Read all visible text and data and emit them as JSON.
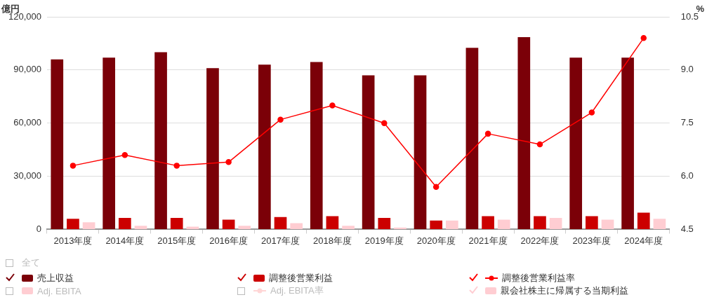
{
  "chart_data": {
    "type": "bar",
    "ylabel": "億円",
    "y2label": "%",
    "categories": [
      "2013年度",
      "2014年度",
      "2015年度",
      "2016年度",
      "2017年度",
      "2018年度",
      "2019年度",
      "2020年度",
      "2021年度",
      "2022年度",
      "2023年度",
      "2024年度"
    ],
    "series": [
      {
        "name": "売上収益",
        "color": "#7b0008",
        "values": [
          96000,
          97000,
          100000,
          91000,
          93000,
          94500,
          87000,
          87000,
          102500,
          108500,
          97000,
          97000
        ]
      },
      {
        "name": "調整後営業利益",
        "color": "#cc0000",
        "values": [
          6000,
          6500,
          6500,
          5500,
          7000,
          7500,
          6500,
          5000,
          7500,
          7500,
          7500,
          9500
        ]
      },
      {
        "name": "調整後営業利益率",
        "type": "line",
        "axis": "y2",
        "color": "#ff0000",
        "values": [
          6.3,
          6.6,
          6.3,
          6.4,
          7.6,
          8.0,
          7.5,
          5.7,
          7.2,
          6.9,
          7.8,
          9.9
        ]
      },
      {
        "name": "Adj. EBITA",
        "color": "#ffcdd2",
        "values": [
          null,
          null,
          null,
          null,
          null,
          null,
          null,
          null,
          null,
          null,
          null,
          null
        ]
      },
      {
        "name": "Adj. EBITA率",
        "type": "line",
        "axis": "y2",
        "color": "#ffd6d6",
        "values": [
          null,
          null,
          null,
          null,
          null,
          null,
          null,
          null,
          null,
          null,
          null,
          null
        ]
      },
      {
        "name": "親会社株主に帰属する当期利益",
        "color": "#ffcdd2",
        "values": [
          4000,
          2000,
          1500,
          2000,
          3500,
          2000,
          1000,
          5000,
          5500,
          6500,
          5500,
          6000
        ]
      }
    ],
    "ylim": [
      0,
      120000
    ],
    "yticks": [
      {
        "value": 0,
        "label": "0"
      },
      {
        "value": 30000,
        "label": "30,000"
      },
      {
        "value": 60000,
        "label": "60,000"
      },
      {
        "value": 90000,
        "label": "90,000"
      },
      {
        "value": 120000,
        "label": "120,000"
      }
    ],
    "y2lim": [
      4.5,
      10.5
    ],
    "y2ticks": [
      4.5,
      {
        "value": 6,
        "label": "6.0"
      },
      7.5,
      {
        "value": 9,
        "label": "9.0"
      },
      10.5
    ],
    "grid": "y",
    "legend": "bottom",
    "marker": "circle",
    "annotations": [
      "全て"
    ]
  }
}
